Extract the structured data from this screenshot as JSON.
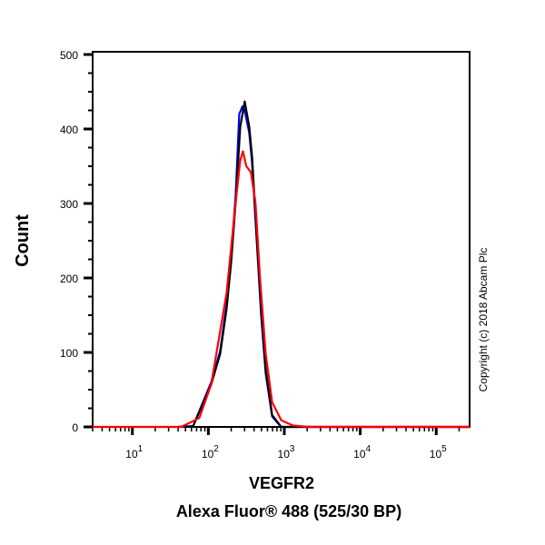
{
  "chart_data": {
    "type": "line",
    "title": "",
    "xlabel": "VEGFR2",
    "xlabel_line2": "Alexa Fluor® 488 (525/30 BP)",
    "ylabel": "Count",
    "x_scale": "log",
    "xlim": [
      3,
      275000
    ],
    "ylim": [
      0,
      500
    ],
    "y_ticks": [
      0,
      100,
      200,
      300,
      400,
      500
    ],
    "x_ticks": [
      {
        "base": "10",
        "exp": "1",
        "value": 10
      },
      {
        "base": "10",
        "exp": "2",
        "value": 100
      },
      {
        "base": "10",
        "exp": "3",
        "value": 1000
      },
      {
        "base": "10",
        "exp": "4",
        "value": 10000
      },
      {
        "base": "10",
        "exp": "5",
        "value": 100000
      }
    ],
    "grid": false,
    "legend": "none",
    "annotation": "Copyright (c) 2018 Abcam Plc",
    "series": [
      {
        "color": "#0000ff",
        "x": [
          40,
          63,
          109,
          143,
          174,
          199,
          229,
          255,
          280,
          300,
          346,
          376,
          431,
          495,
          569,
          691,
          910,
          3000,
          275000
        ],
        "y": [
          0,
          1,
          60,
          102,
          165,
          228,
          312,
          420,
          430,
          425,
          395,
          355,
          255,
          150,
          72,
          14,
          0,
          0,
          0
        ]
      },
      {
        "color": "#000000",
        "x": [
          40,
          63,
          109,
          143,
          174,
          199,
          229,
          263,
          301,
          346,
          376,
          431,
          495,
          569,
          691,
          910,
          3000,
          275000
        ],
        "y": [
          0,
          1,
          57,
          98,
          159,
          220,
          302,
          403,
          437,
          403,
          363,
          260,
          159,
          77,
          16,
          0,
          0,
          0
        ]
      },
      {
        "color": "#ff0000",
        "x": [
          3,
          44,
          76,
          109,
          174,
          229,
          263,
          285,
          316,
          363,
          417,
          480,
          569,
          691,
          910,
          1290,
          2090,
          275000
        ],
        "y": [
          0,
          0,
          12,
          57,
          180,
          302,
          358,
          370,
          350,
          342,
          302,
          199,
          98,
          33,
          9,
          2,
          0,
          0
        ]
      }
    ]
  }
}
